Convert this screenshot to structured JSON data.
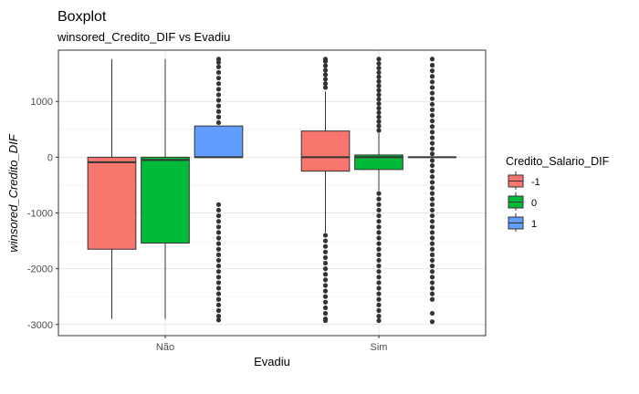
{
  "chart_data": {
    "type": "boxplot",
    "title": "Boxplot",
    "subtitle": "winsored_Credito_DIF vs Evadiu",
    "xlabel": "Evadiu",
    "ylabel": "winsored_Credito_DIF",
    "ylim": [
      -3200,
      1920
    ],
    "yticks": [
      -3000,
      -2000,
      -1000,
      0,
      1000
    ],
    "ytick_labels": [
      "-3000",
      "-2000",
      "-1000",
      "0",
      "1000"
    ],
    "categories": [
      "Não",
      "Sim"
    ],
    "legend": {
      "title": "Credito_Salario_DIF",
      "position": "right",
      "entries": [
        {
          "label": "-1",
          "color": "#F8766D"
        },
        {
          "label": "0",
          "color": "#00BA38"
        },
        {
          "label": "1",
          "color": "#619CFF"
        }
      ]
    },
    "grid": true,
    "boxes": [
      {
        "category": "Não",
        "group": "-1",
        "color": "#F8766D",
        "min": -2900,
        "q1": -1650,
        "median": -90,
        "q3": 0,
        "max": 1760,
        "outliers_low": [],
        "outliers_high": []
      },
      {
        "category": "Não",
        "group": "0",
        "color": "#00BA38",
        "min": -2900,
        "q1": -1540,
        "median": -50,
        "q3": 0,
        "max": 1760,
        "outliers_low": [],
        "outliers_high": []
      },
      {
        "category": "Não",
        "group": "1",
        "color": "#619CFF",
        "min": 0,
        "q1": 0,
        "median": 0,
        "q3": 560,
        "max": 560,
        "outliers_low": [
          -850,
          -950,
          -1050,
          -1150,
          -1250,
          -1350,
          -1450,
          -1550,
          -1650,
          -1750,
          -1850,
          -1950,
          -2050,
          -2150,
          -2250,
          -2350,
          -2450,
          -2550,
          -2650,
          -2750,
          -2850,
          -2920
        ],
        "outliers_high": [
          620,
          720,
          820,
          920,
          1020,
          1120,
          1220,
          1320,
          1420,
          1520,
          1620,
          1700,
          1760
        ]
      },
      {
        "category": "Sim",
        "group": "-1",
        "color": "#F8766D",
        "min": -1350,
        "q1": -250,
        "median": 0,
        "q3": 470,
        "max": 1180,
        "outliers_low": [
          -1400,
          -1500,
          -1600,
          -1700,
          -1800,
          -1900,
          -2000,
          -2100,
          -2200,
          -2300,
          -2400,
          -2500,
          -2600,
          -2700,
          -2800,
          -2900,
          -2930
        ],
        "outliers_high": [
          1250,
          1320,
          1400,
          1480,
          1560,
          1640,
          1720,
          1760
        ]
      },
      {
        "category": "Sim",
        "group": "0",
        "color": "#00BA38",
        "min": -600,
        "q1": -220,
        "median": 0,
        "q3": 40,
        "max": 430,
        "outliers_low": [
          -650,
          -750,
          -850,
          -950,
          -1050,
          -1150,
          -1250,
          -1350,
          -1450,
          -1550,
          -1650,
          -1750,
          -1850,
          -1950,
          -2050,
          -2150,
          -2250,
          -2350,
          -2450,
          -2550,
          -2650,
          -2750,
          -2850,
          -2930
        ],
        "outliers_high": [
          480,
          560,
          640,
          720,
          800,
          880,
          960,
          1040,
          1120,
          1200,
          1280,
          1360,
          1440,
          1520,
          1600,
          1680,
          1760
        ]
      },
      {
        "category": "Sim",
        "group": "1",
        "color": "#619CFF",
        "min": 0,
        "q1": 0,
        "median": 0,
        "q3": 0,
        "max": 0,
        "outliers_low": [
          -60,
          -150,
          -250,
          -350,
          -450,
          -550,
          -650,
          -750,
          -850,
          -950,
          -1050,
          -1150,
          -1250,
          -1350,
          -1450,
          -1550,
          -1650,
          -1750,
          -1850,
          -1950,
          -2050,
          -2150,
          -2250,
          -2350,
          -2450,
          -2550,
          -2800,
          -2950
        ],
        "outliers_high": [
          60,
          150,
          250,
          350,
          450,
          550,
          650,
          750,
          850,
          950,
          1050,
          1150,
          1250,
          1350,
          1450,
          1550,
          1650,
          1760
        ]
      }
    ]
  }
}
